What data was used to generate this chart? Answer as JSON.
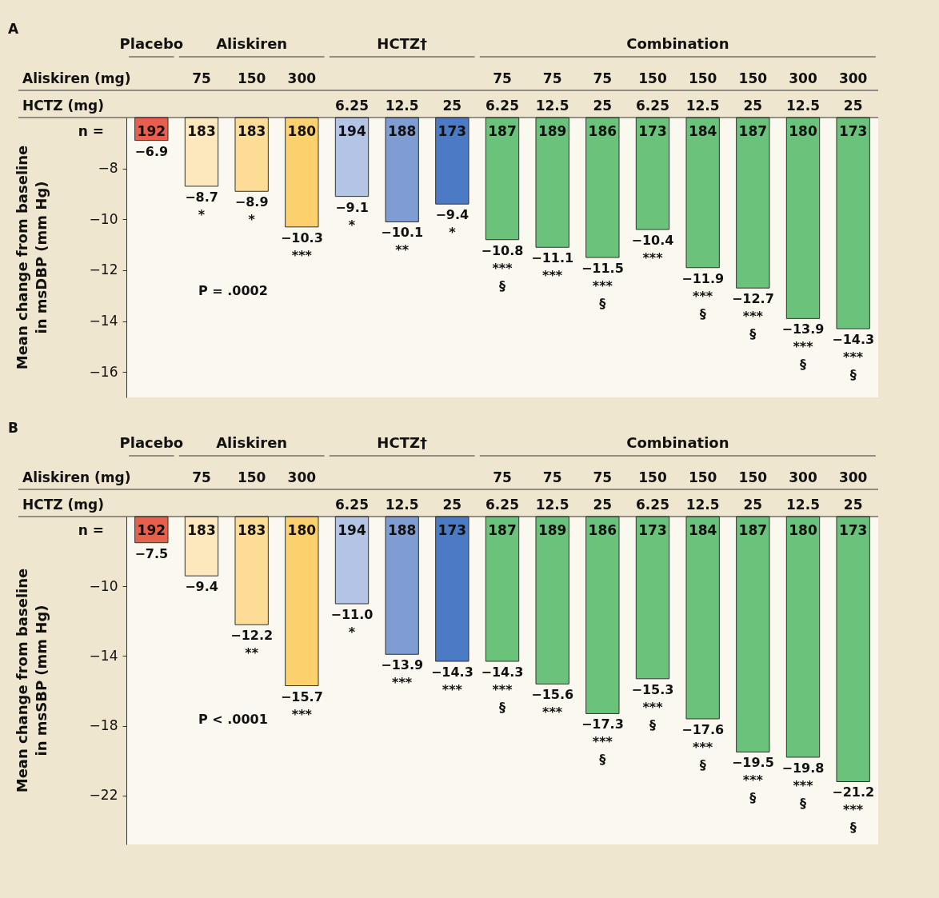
{
  "chart_data": [
    {
      "type": "bar",
      "title": "A",
      "ylabel": "Mean change from baseline\nin msDBP (mm Hg)",
      "categories": [
        null,
        "75\n",
        "150\n",
        "300\n",
        "\n6.25",
        "\n12.5",
        "\n25",
        "75\n6.25",
        "75\n12.5",
        "75\n25",
        "150\n6.25",
        "150\n12.5",
        "150\n25",
        "300\n12.5",
        "300\n25"
      ],
      "series": [
        {
          "colors": [
            "#e8604c",
            null,
            null,
            null,
            null,
            null,
            null,
            null,
            null,
            null,
            null,
            null,
            null,
            null,
            null
          ],
          "values": [
            -6.9,
            null,
            null,
            null,
            null,
            null,
            null,
            null,
            null,
            null,
            null,
            null,
            null,
            null,
            null
          ],
          "value_labels": [
            "−6.9",
            null,
            null,
            null,
            null,
            null,
            null,
            null,
            null,
            null,
            null,
            null,
            null,
            null,
            null
          ]
        },
        {
          "colors": [
            null,
            "#fde8bd",
            "#fddc96",
            "#fcd06c",
            null,
            null,
            null,
            null,
            null,
            null,
            null,
            null,
            null,
            null,
            null
          ],
          "values": [
            null,
            -8.7,
            -8.9,
            -10.3,
            null,
            null,
            null,
            null,
            null,
            null,
            null,
            null,
            null,
            null,
            null
          ],
          "value_labels": [
            null,
            "−8.7\n*",
            "−8.9\n*",
            "−10.3\n***",
            null,
            null,
            null,
            null,
            null,
            null,
            null,
            null,
            null,
            null,
            null
          ]
        },
        {
          "colors": [
            null,
            null,
            null,
            null,
            "#b3c4e4",
            "#7f9cd3",
            "#4a7bc4",
            null,
            null,
            null,
            null,
            null,
            null,
            null,
            null
          ],
          "values": [
            null,
            null,
            null,
            null,
            -9.1,
            -10.1,
            -9.4,
            null,
            null,
            null,
            null,
            null,
            null,
            null,
            null
          ],
          "value_labels": [
            null,
            null,
            null,
            null,
            "−9.1\n*",
            "−10.1\n**",
            "−9.4\n*",
            null,
            null,
            null,
            null,
            null,
            null,
            null,
            null
          ]
        },
        {
          "colors": [
            null,
            null,
            null,
            null,
            null,
            null,
            null,
            "#6bc27b",
            "#6bc27b",
            "#6bc27b",
            "#6bc27b",
            "#6bc27b",
            "#6bc27b",
            "#6bc27b",
            "#6bc27b"
          ],
          "values": [
            null,
            null,
            null,
            null,
            null,
            null,
            null,
            -10.8,
            -11.1,
            -11.5,
            -10.4,
            -11.9,
            -12.7,
            -13.9,
            -14.3
          ],
          "value_labels": [
            null,
            null,
            null,
            null,
            null,
            null,
            null,
            "−10.8\n***\n§",
            "−11.1\n***",
            "−11.5\n***\n§",
            "−10.4\n***",
            "−11.9\n***\n§",
            "−12.7\n***\n§",
            "−13.9\n***\n§",
            "−14.3\n***\n§"
          ]
        }
      ],
      "ylim": [
        -17,
        -6
      ],
      "yticks": [
        {
          "value": -8,
          "label": "−8"
        },
        {
          "value": -10,
          "label": "−10"
        },
        {
          "value": -12,
          "label": "−12"
        },
        {
          "value": -14,
          "label": "−14"
        },
        {
          "value": -16,
          "label": "−16"
        }
      ],
      "annotations": [
        "Placebo",
        "Aliskiren",
        "HCTZ†",
        "Combination",
        "Aliskiren (mg)",
        "HCTZ (mg)",
        "n =",
        "P = .0002",
        "192",
        "183",
        "183",
        "180",
        "194",
        "188",
        "173",
        "187",
        "189",
        "186",
        "173",
        "184",
        "187",
        "180",
        "173"
      ]
    },
    {
      "type": "bar",
      "title": "B",
      "ylabel": "Mean change from baseline\nin msSBP (mm Hg)",
      "categories": [
        null,
        "75\n",
        "150\n",
        "300\n",
        "\n6.25",
        "\n12.5",
        "\n25",
        "75\n6.25",
        "75\n12.5",
        "75\n25",
        "150\n6.25",
        "150\n12.5",
        "150\n25",
        "300\n12.5",
        "300\n25"
      ],
      "series": [
        {
          "colors": [
            "#e8604c",
            null,
            null,
            null,
            null,
            null,
            null,
            null,
            null,
            null,
            null,
            null,
            null,
            null,
            null
          ],
          "values": [
            -7.5,
            null,
            null,
            null,
            null,
            null,
            null,
            null,
            null,
            null,
            null,
            null,
            null,
            null,
            null
          ],
          "value_labels": [
            "−7.5",
            null,
            null,
            null,
            null,
            null,
            null,
            null,
            null,
            null,
            null,
            null,
            null,
            null,
            null
          ]
        },
        {
          "colors": [
            null,
            "#fde8bd",
            "#fddc96",
            "#fcd06c",
            null,
            null,
            null,
            null,
            null,
            null,
            null,
            null,
            null,
            null,
            null
          ],
          "values": [
            null,
            -9.4,
            -12.2,
            -15.7,
            null,
            null,
            null,
            null,
            null,
            null,
            null,
            null,
            null,
            null,
            null
          ],
          "value_labels": [
            null,
            "−9.4",
            "−12.2\n**",
            "−15.7\n***",
            null,
            null,
            null,
            null,
            null,
            null,
            null,
            null,
            null,
            null,
            null
          ]
        },
        {
          "colors": [
            null,
            null,
            null,
            null,
            "#b3c4e4",
            "#7f9cd3",
            "#4a7bc4",
            null,
            null,
            null,
            null,
            null,
            null,
            null,
            null
          ],
          "values": [
            null,
            null,
            null,
            null,
            -11.0,
            -13.9,
            -14.3,
            null,
            null,
            null,
            null,
            null,
            null,
            null,
            null
          ],
          "value_labels": [
            null,
            null,
            null,
            null,
            "−11.0\n*",
            "−13.9\n***",
            "−14.3\n***",
            null,
            null,
            null,
            null,
            null,
            null,
            null,
            null
          ]
        },
        {
          "colors": [
            null,
            null,
            null,
            null,
            null,
            null,
            null,
            "#6bc27b",
            "#6bc27b",
            "#6bc27b",
            "#6bc27b",
            "#6bc27b",
            "#6bc27b",
            "#6bc27b",
            "#6bc27b"
          ],
          "values": [
            null,
            null,
            null,
            null,
            null,
            null,
            null,
            -14.3,
            -15.6,
            -17.3,
            -15.3,
            -17.6,
            -19.5,
            -19.8,
            -21.2
          ],
          "value_labels": [
            null,
            null,
            null,
            null,
            null,
            null,
            null,
            "−14.3\n***\n§",
            "−15.6\n***",
            "−17.3\n***\n§",
            "−15.3\n***\n§",
            "−17.6\n***\n§",
            "−19.5\n***\n§",
            "−19.8\n***\n§",
            "−21.2\n***\n§"
          ]
        }
      ],
      "ylim": [
        -24.8,
        -6
      ],
      "yticks": [
        {
          "value": -10,
          "label": "−10"
        },
        {
          "value": -14,
          "label": "−14"
        },
        {
          "value": -18,
          "label": "−18"
        },
        {
          "value": -22,
          "label": "−22"
        }
      ],
      "annotations": [
        "Placebo",
        "Aliskiren",
        "HCTZ†",
        "Combination",
        "Aliskiren (mg)",
        "HCTZ (mg)",
        "n =",
        "P < .0001",
        "192",
        "183",
        "183",
        "180",
        "194",
        "188",
        "173",
        "187",
        "189",
        "186",
        "173",
        "184",
        "187",
        "180",
        "173"
      ]
    }
  ]
}
